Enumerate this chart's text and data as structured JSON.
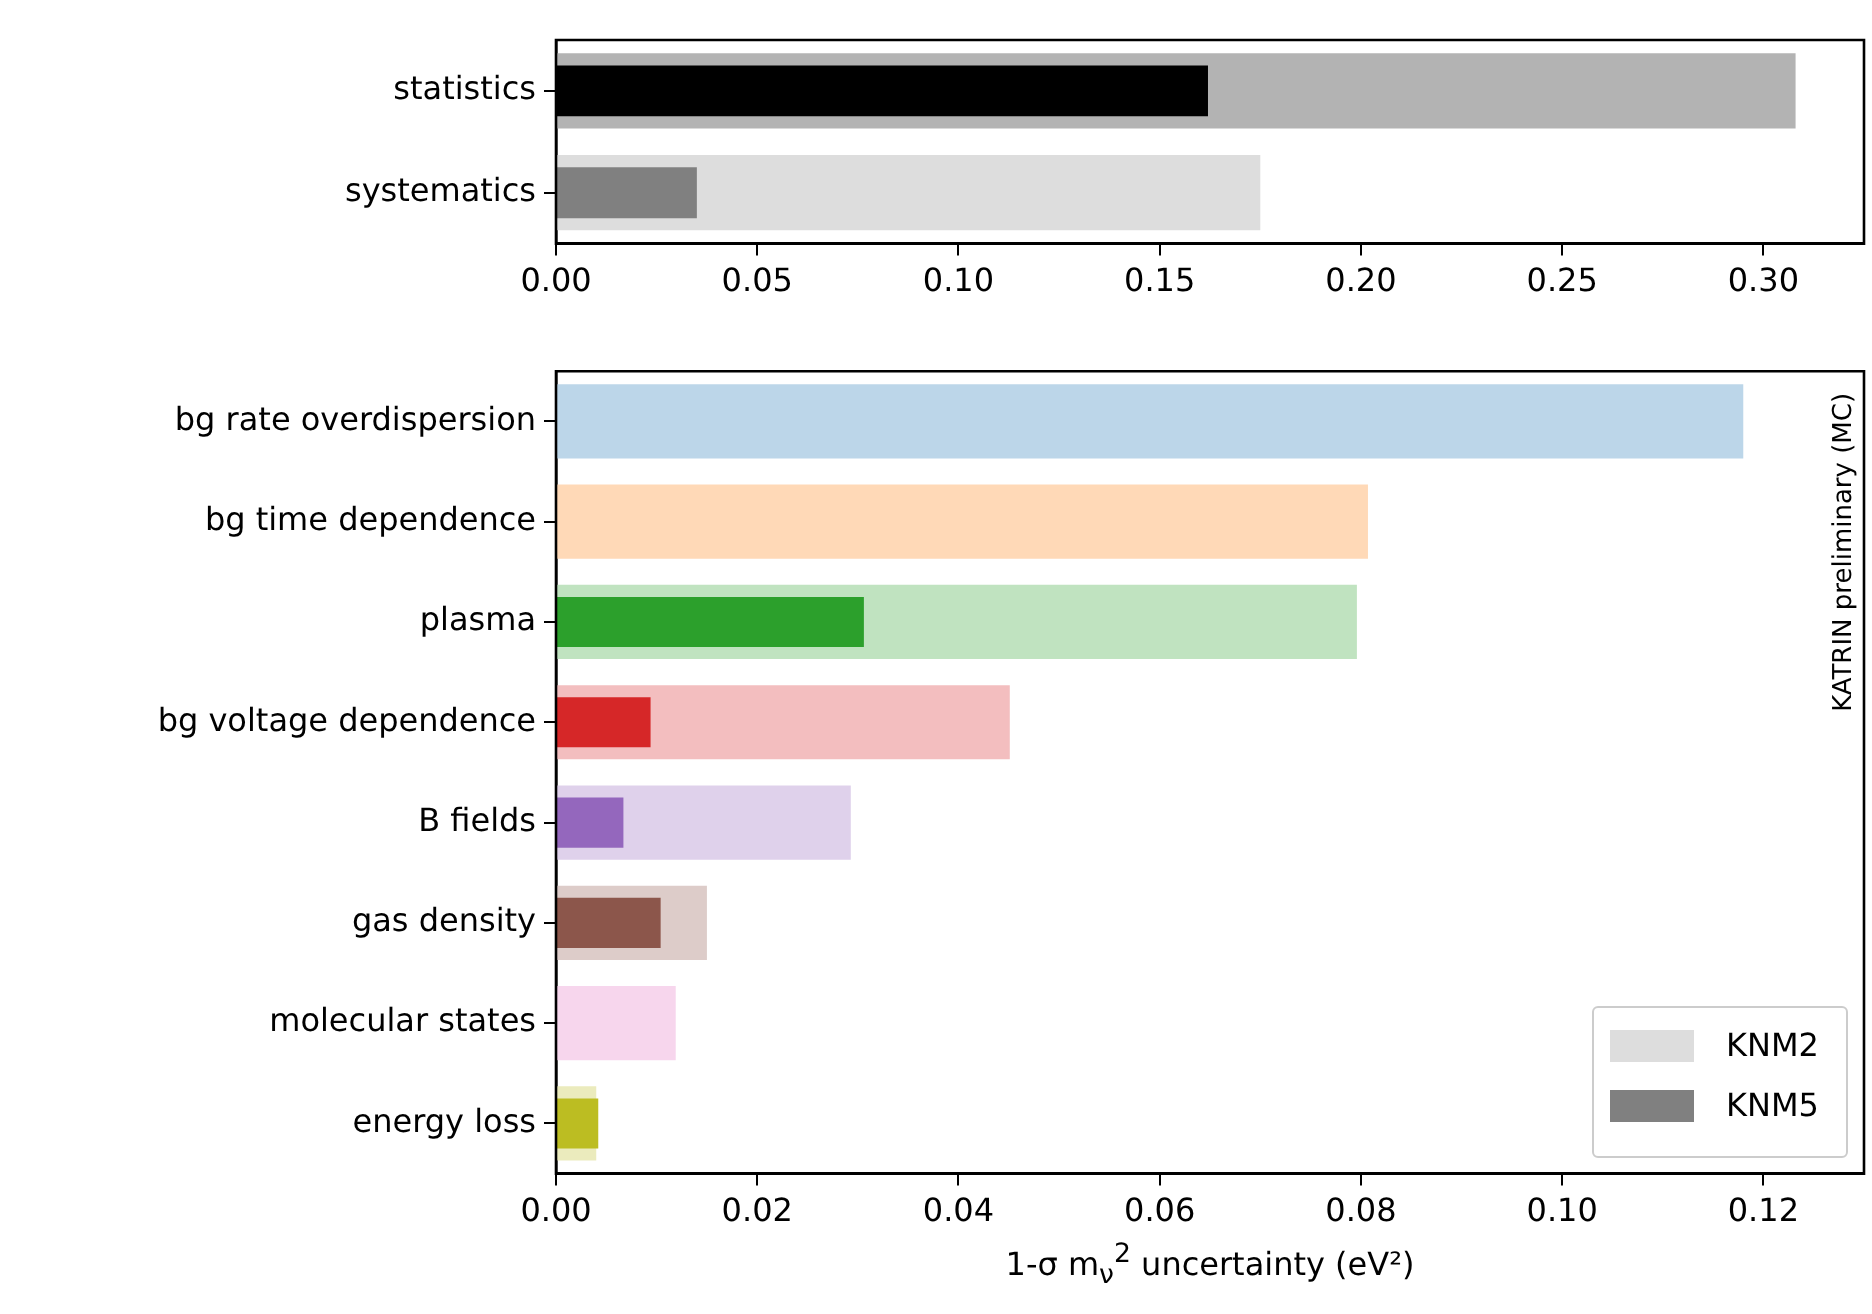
{
  "chart_data": [
    {
      "type": "bar",
      "orientation": "horizontal",
      "categories": [
        "statistics",
        "systematics"
      ],
      "series": [
        {
          "color": "#dddddd",
          "colors": [
            "#b3b3b3",
            "#dddddd"
          ],
          "values": [
            0.308,
            0.175
          ]
        },
        {
          "color": "#808080",
          "colors": [
            "#000000",
            "#808080"
          ],
          "values": [
            0.162,
            0.035
          ]
        }
      ],
      "xlim": [
        0,
        0.325
      ],
      "xticks": [
        {
          "value": 0,
          "label": "0.00"
        },
        {
          "value": 0.05,
          "label": "0.05"
        },
        {
          "value": 0.1,
          "label": "0.10"
        },
        {
          "value": 0.15,
          "label": "0.15"
        },
        {
          "value": 0.2,
          "label": "0.20"
        },
        {
          "value": 0.25,
          "label": "0.25"
        },
        {
          "value": 0.3,
          "label": "0.30"
        }
      ],
      "grid": false,
      "legend": false
    },
    {
      "type": "bar",
      "orientation": "horizontal",
      "categories": [
        "bg rate overdispersion",
        "bg time dependence",
        "plasma",
        "bg voltage dependence",
        "B fields",
        "gas density",
        "molecular states",
        "energy loss"
      ],
      "series": [
        {
          "name": "KNM2",
          "color": "#dddddd",
          "colors": [
            "#bcd6e9",
            "#ffd9b7",
            "#c0e3c0",
            "#f3bebf",
            "#dfd1eb",
            "#ddccc9",
            "#f7d6ed",
            "#ebebbd"
          ],
          "values": [
            0.118,
            0.0807,
            0.0796,
            0.0451,
            0.0293,
            0.015,
            0.0119,
            0.004
          ]
        },
        {
          "name": "KNM5",
          "color": "#808080",
          "colors": [
            "#1f77b4",
            "#ff7f0e",
            "#2ca02c",
            "#d62728",
            "#9467bd",
            "#8c564b",
            "#e377c2",
            "#bcbd22"
          ],
          "values": [
            null,
            null,
            0.0306,
            0.0094,
            0.0067,
            0.0104,
            null,
            0.0042
          ]
        }
      ],
      "xlim": [
        0,
        0.13
      ],
      "xticks": [
        {
          "value": 0,
          "label": "0.00"
        },
        {
          "value": 0.02,
          "label": "0.02"
        },
        {
          "value": 0.04,
          "label": "0.04"
        },
        {
          "value": 0.06,
          "label": "0.06"
        },
        {
          "value": 0.08,
          "label": "0.08"
        },
        {
          "value": 0.1,
          "label": "0.10"
        },
        {
          "value": 0.12,
          "label": "0.12"
        }
      ],
      "xlabel": "1-σ m$_{ν}$$^{2}$ uncertainty (eV²)",
      "annotations": [
        "KATRIN preliminary (MC)"
      ],
      "grid": false,
      "legend": "bottom right"
    }
  ]
}
